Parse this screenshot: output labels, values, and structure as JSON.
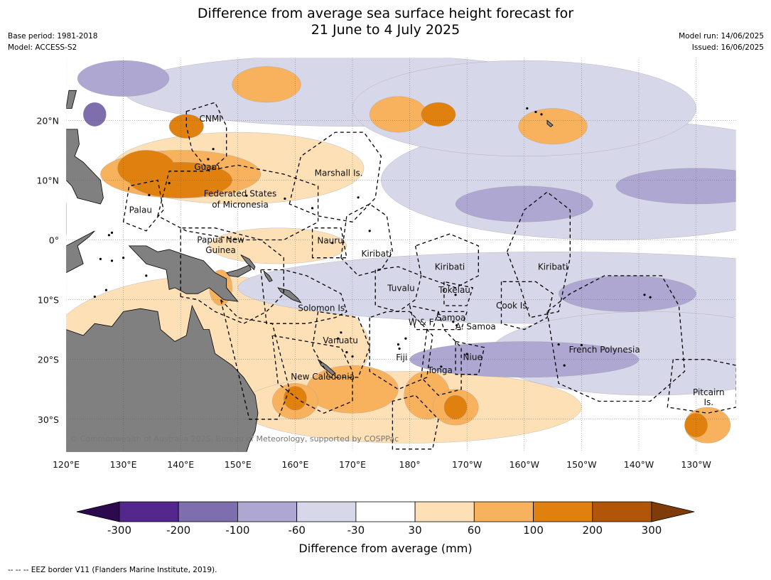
{
  "header": {
    "title_line1": "Difference from average sea surface height forecast for",
    "title_line2": "21 June to 4 July 2025",
    "base_period": "Base period: 1981-2018",
    "model": "Model: ACCESS-S2",
    "model_run": "Model run: 14/06/2025",
    "issued": "Issued: 16/06/2025"
  },
  "map": {
    "lon_range": [
      120,
      237
    ],
    "lat_range": [
      -35.5,
      30.5
    ],
    "lon_ticks": [
      {
        "lon": 120,
        "label": "120°E"
      },
      {
        "lon": 130,
        "label": "130°E"
      },
      {
        "lon": 140,
        "label": "140°E"
      },
      {
        "lon": 150,
        "label": "150°E"
      },
      {
        "lon": 160,
        "label": "160°E"
      },
      {
        "lon": 170,
        "label": "170°E"
      },
      {
        "lon": 180,
        "label": "180°"
      },
      {
        "lon": 190,
        "label": "170°W"
      },
      {
        "lon": 200,
        "label": "160°W"
      },
      {
        "lon": 210,
        "label": "150°W"
      },
      {
        "lon": 220,
        "label": "140°W"
      },
      {
        "lon": 230,
        "label": "130°W"
      }
    ],
    "lat_ticks": [
      {
        "lat": 20,
        "label": "20°N"
      },
      {
        "lat": 10,
        "label": "10°N"
      },
      {
        "lat": 0,
        "label": "0°"
      },
      {
        "lat": -10,
        "label": "10°S"
      },
      {
        "lat": -20,
        "label": "20°S"
      },
      {
        "lat": -30,
        "label": "30°S"
      }
    ],
    "place_labels": [
      {
        "text": "CNMI",
        "lon": 145.2,
        "lat": 20.3
      },
      {
        "text": "Guam",
        "lon": 144.6,
        "lat": 12.2
      },
      {
        "text": "Marshall Is.",
        "lon": 167.6,
        "lat": 11.2
      },
      {
        "text": "Federated States",
        "lon": 150.4,
        "lat": 7.7
      },
      {
        "text": "of Micronesia",
        "lon": 150.4,
        "lat": 5.9
      },
      {
        "text": "Palau",
        "lon": 133.0,
        "lat": 5.0
      },
      {
        "text": "Papua New",
        "lon": 147.0,
        "lat": 0.0
      },
      {
        "text": "Guinea",
        "lon": 147.0,
        "lat": -1.7
      },
      {
        "text": "Nauru",
        "lon": 166.1,
        "lat": -0.1
      },
      {
        "text": "Kiribati",
        "lon": 174.2,
        "lat": -2.3
      },
      {
        "text": "Kiribati",
        "lon": 187.0,
        "lat": -4.5
      },
      {
        "text": "Kiribati",
        "lon": 205.0,
        "lat": -4.5
      },
      {
        "text": "Tuvalu",
        "lon": 178.5,
        "lat": -8.1
      },
      {
        "text": "Tokelau",
        "lon": 187.8,
        "lat": -8.4
      },
      {
        "text": "Cook Is.",
        "lon": 198.0,
        "lat": -11.0
      },
      {
        "text": "Solomon Is.",
        "lon": 164.8,
        "lat": -11.4
      },
      {
        "text": "Samoa",
        "lon": 187.2,
        "lat": -13.0
      },
      {
        "text": "W & F",
        "lon": 182.0,
        "lat": -13.8
      },
      {
        "text": "A. Samoa",
        "lon": 191.5,
        "lat": -14.5
      },
      {
        "text": "Vanuatu",
        "lon": 167.9,
        "lat": -16.8
      },
      {
        "text": "Fiji",
        "lon": 178.6,
        "lat": -19.7
      },
      {
        "text": "Niue",
        "lon": 191.0,
        "lat": -19.6
      },
      {
        "text": "French Polynesia",
        "lon": 214.0,
        "lat": -18.4
      },
      {
        "text": "Tonga",
        "lon": 185.3,
        "lat": -21.8
      },
      {
        "text": "New Caledonia",
        "lon": 164.8,
        "lat": -22.9
      },
      {
        "text": "Pitcairn",
        "lon": 232.2,
        "lat": -25.5
      },
      {
        "text": "Is.",
        "lon": 232.2,
        "lat": -27.2
      }
    ],
    "copyright": "© Commonwealth of Australia 2025, Bureau of Meteorology, supported by COSPPac",
    "land_color": "#808080"
  },
  "colorbar": {
    "title": "Difference from average (mm)",
    "ticks": [
      "-300",
      "-200",
      "-100",
      "-60",
      "-30",
      "30",
      "60",
      "100",
      "200",
      "300"
    ],
    "colors": [
      "#54278f",
      "#7f6eae",
      "#ada7d1",
      "#d7d7ea",
      "#ffffff",
      "#fde0b6",
      "#f8b25e",
      "#e0800f",
      "#b15608"
    ],
    "under_color": "#2d0a4e",
    "over_color": "#7f3b08"
  },
  "footnote": "--  --  -- EEZ border V11 (Flanders Marine Institute, 2019)."
}
